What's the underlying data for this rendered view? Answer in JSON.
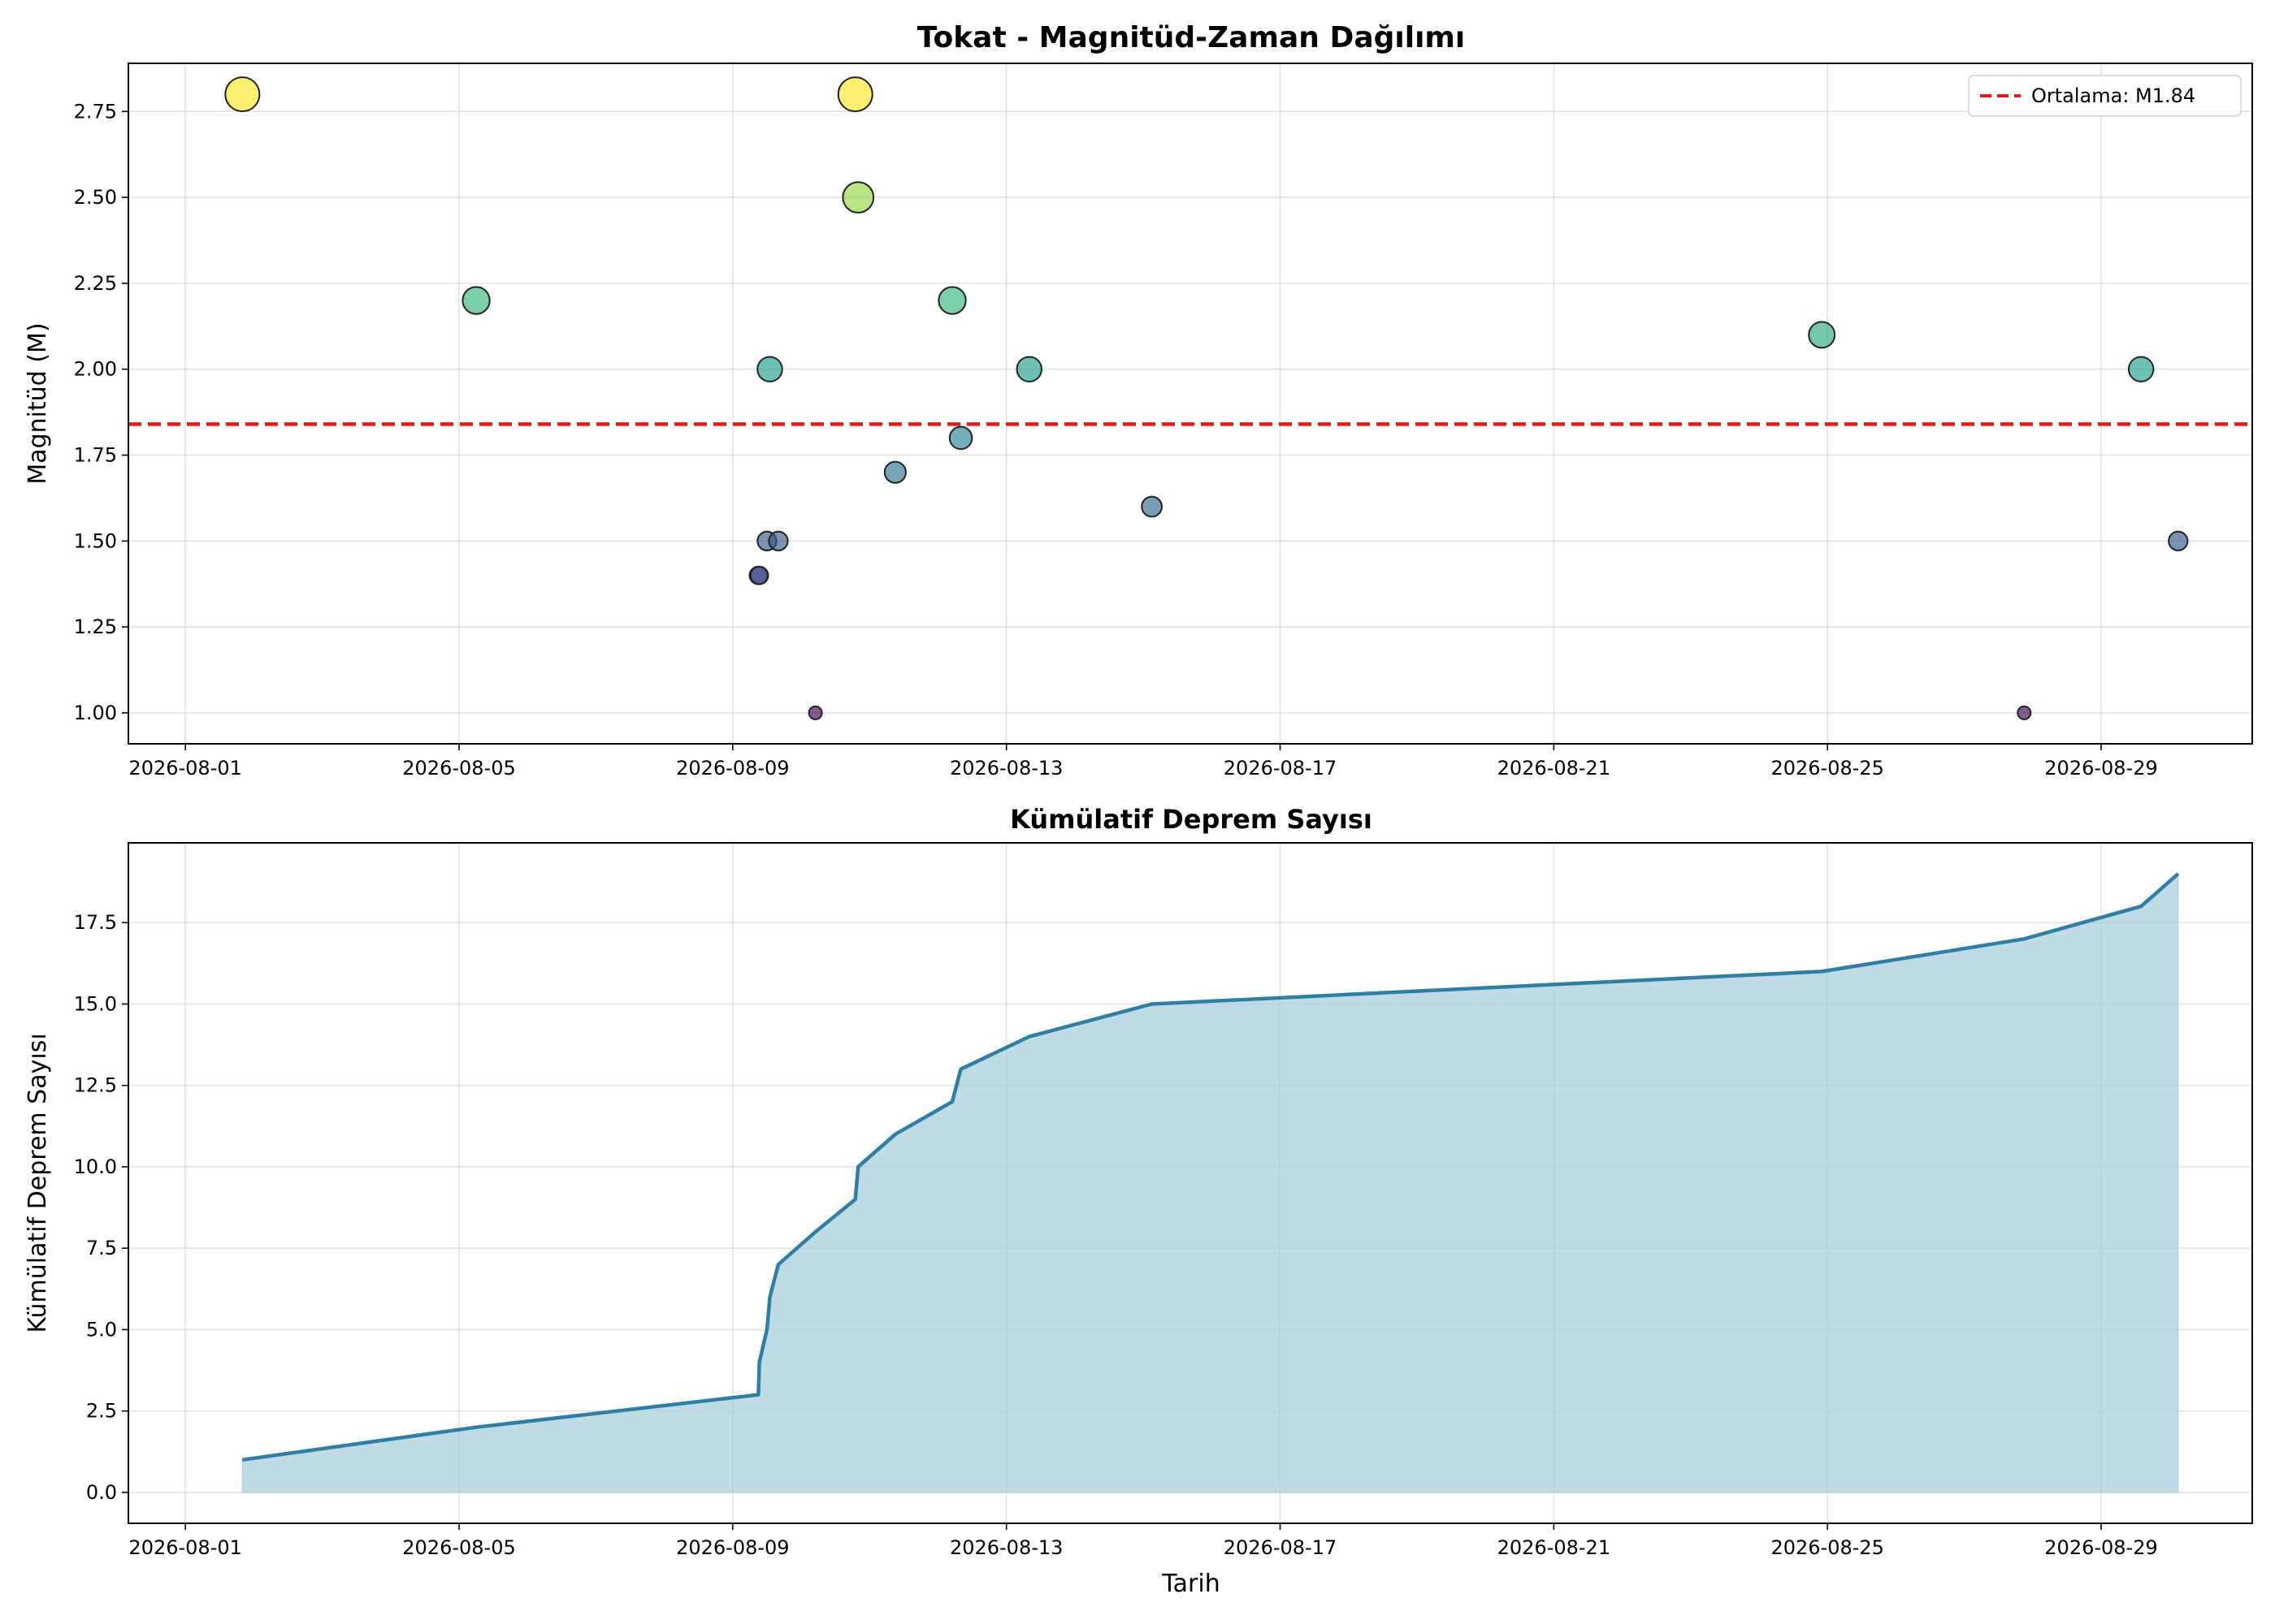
{
  "chart_data": [
    {
      "type": "scatter",
      "title": "Tokat - Magnitüd-Zaman Dağılımı",
      "xlabel": "",
      "ylabel": "Magnitüd (M)",
      "xlim": [
        "2026-07-31T04:00",
        "2026-08-31T05:00"
      ],
      "ylim": [
        0.91,
        2.89
      ],
      "x_ticks": [
        "2026-08-01",
        "2026-08-05",
        "2026-08-09",
        "2026-08-13",
        "2026-08-17",
        "2026-08-21",
        "2026-08-25",
        "2026-08-29"
      ],
      "y_ticks": [
        "1.00",
        "1.25",
        "1.50",
        "1.75",
        "2.00",
        "2.25",
        "2.50",
        "2.75"
      ],
      "grid": true,
      "colormap": "viridis",
      "color_range": [
        1.0,
        2.8
      ],
      "points": [
        {
          "date": "2026-08-01T20:00",
          "magnitude": 2.8
        },
        {
          "date": "2026-08-05T06:00",
          "magnitude": 2.2
        },
        {
          "date": "2026-08-09T09:00",
          "magnitude": 1.4
        },
        {
          "date": "2026-08-09T09:20",
          "magnitude": 1.4
        },
        {
          "date": "2026-08-09T12:00",
          "magnitude": 1.5
        },
        {
          "date": "2026-08-09T13:00",
          "magnitude": 2.0
        },
        {
          "date": "2026-08-09T16:00",
          "magnitude": 1.5
        },
        {
          "date": "2026-08-10T05:00",
          "magnitude": 1.0
        },
        {
          "date": "2026-08-10T19:00",
          "magnitude": 2.8
        },
        {
          "date": "2026-08-10T20:00",
          "magnitude": 2.5
        },
        {
          "date": "2026-08-11T09:00",
          "magnitude": 1.7
        },
        {
          "date": "2026-08-12T05:00",
          "magnitude": 2.2
        },
        {
          "date": "2026-08-12T08:00",
          "magnitude": 1.8
        },
        {
          "date": "2026-08-13T08:00",
          "magnitude": 2.0
        },
        {
          "date": "2026-08-15T03:00",
          "magnitude": 1.6
        },
        {
          "date": "2026-08-24T22:00",
          "magnitude": 2.1
        },
        {
          "date": "2026-08-27T21:00",
          "magnitude": 1.0
        },
        {
          "date": "2026-08-29T14:00",
          "magnitude": 2.0
        },
        {
          "date": "2026-08-30T03:00",
          "magnitude": 1.5
        }
      ],
      "reference_line": {
        "value": 1.84,
        "label": "Ortalama: M1.84",
        "color": "#e41a1c",
        "style": "dashed"
      },
      "legend_position": "upper right"
    },
    {
      "type": "area",
      "title": "Kümülatif Deprem Sayısı",
      "xlabel": "Tarih",
      "ylabel": "Kümülatif Deprem Sayısı",
      "xlim": [
        "2026-07-31T04:00",
        "2026-08-31T05:00"
      ],
      "ylim": [
        -0.95,
        19.95
      ],
      "x_ticks": [
        "2026-08-01",
        "2026-08-05",
        "2026-08-09",
        "2026-08-13",
        "2026-08-17",
        "2026-08-21",
        "2026-08-25",
        "2026-08-29"
      ],
      "y_ticks": [
        "0.0",
        "2.5",
        "5.0",
        "7.5",
        "10.0",
        "12.5",
        "15.0",
        "17.5"
      ],
      "grid": true,
      "line_color": "#2e7fa3",
      "fill_color": "#aacfde",
      "series": [
        {
          "x": [
            "2026-08-01T20:00",
            "2026-08-05T06:00",
            "2026-08-09T09:00",
            "2026-08-09T09:20",
            "2026-08-09T12:00",
            "2026-08-09T13:00",
            "2026-08-09T16:00",
            "2026-08-10T05:00",
            "2026-08-10T19:00",
            "2026-08-10T20:00",
            "2026-08-11T09:00",
            "2026-08-12T05:00",
            "2026-08-12T08:00",
            "2026-08-13T08:00",
            "2026-08-15T03:00",
            "2026-08-24T22:00",
            "2026-08-27T21:00",
            "2026-08-29T14:00",
            "2026-08-30T03:00"
          ],
          "values": [
            1,
            2,
            3,
            4,
            5,
            6,
            7,
            8,
            9,
            10,
            11,
            12,
            13,
            14,
            15,
            16,
            17,
            18,
            19
          ]
        }
      ]
    }
  ]
}
